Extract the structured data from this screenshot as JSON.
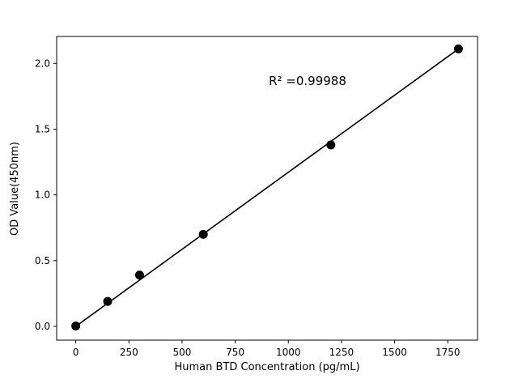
{
  "chart_data": {
    "type": "scatter",
    "title": "",
    "xlabel": "Human BTD Concentration (pg/mL)",
    "ylabel": "OD Value(450nm)",
    "annotation": "R² =0.99988",
    "x": [
      0,
      150,
      300,
      600,
      1200,
      1800
    ],
    "y": [
      0.003,
      0.19,
      0.39,
      0.7,
      1.38,
      2.11
    ],
    "fit_line": {
      "x0": 0,
      "y0": 0.0,
      "x1": 1800,
      "y1": 2.11
    },
    "xlim": [
      -90,
      1890
    ],
    "ylim": [
      -0.105,
      2.205
    ],
    "xticks": [
      0,
      250,
      500,
      750,
      1000,
      1250,
      1500,
      1750
    ],
    "xtick_labels": [
      "0",
      "250",
      "500",
      "750",
      "1000",
      "1250",
      "1500",
      "1750"
    ],
    "yticks": [
      0.0,
      0.5,
      1.0,
      1.5,
      2.0
    ],
    "ytick_labels": [
      "0.0",
      "0.5",
      "1.0",
      "1.5",
      "2.0"
    ],
    "grid": false,
    "legend": null,
    "marker_color": "#000000",
    "line_color": "#000000",
    "background": "#ffffff"
  }
}
